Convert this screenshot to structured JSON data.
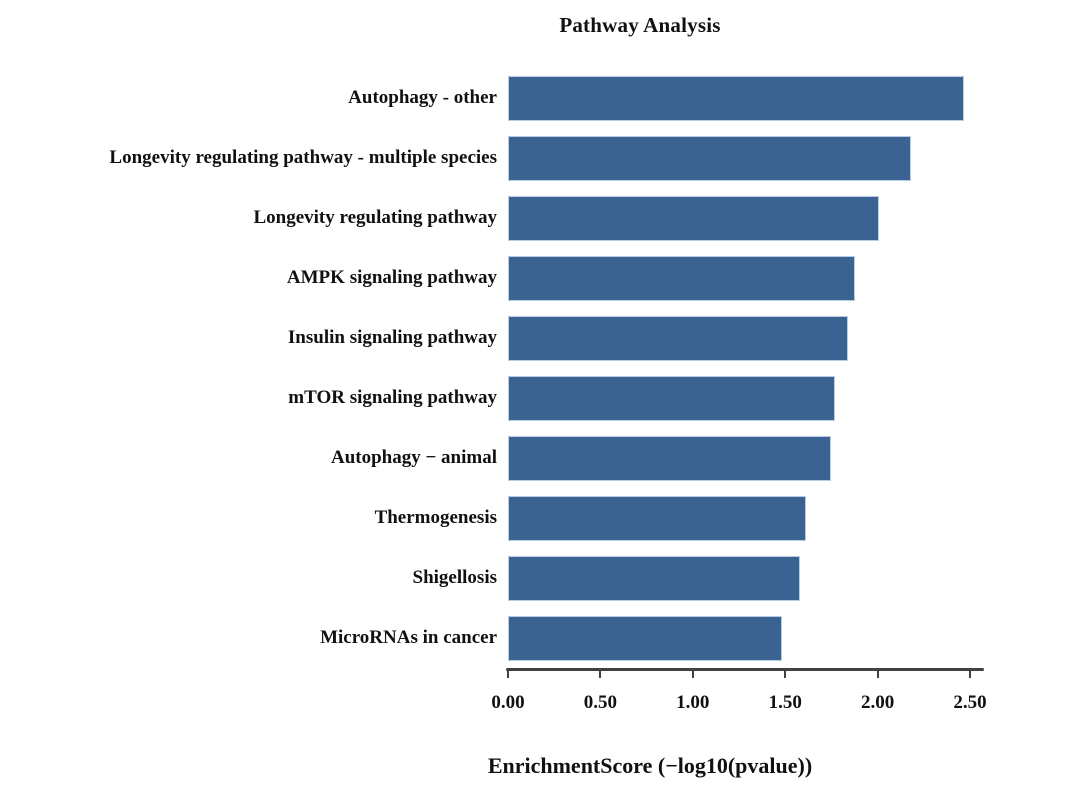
{
  "chart_data": {
    "type": "bar",
    "orientation": "horizontal",
    "title": "Pathway Analysis",
    "xlabel": "EnrichmentScore (−log10(pvalue))",
    "categories": [
      "Autophagy - other",
      "Longevity regulating pathway - multiple species",
      "Longevity regulating pathway",
      "AMPK signaling pathway",
      "Insulin signaling pathway",
      "mTOR signaling pathway",
      "Autophagy − animal",
      "Thermogenesis",
      "Shigellosis",
      "MicroRNAs in cancer"
    ],
    "values": [
      2.47,
      2.18,
      2.01,
      1.88,
      1.84,
      1.77,
      1.75,
      1.61,
      1.58,
      1.48
    ],
    "xlim": [
      0,
      2.5
    ],
    "xticks": [
      "0.00",
      "0.50",
      "1.00",
      "1.50",
      "2.00",
      "2.50"
    ],
    "grid": false,
    "legend": "none",
    "bar_color": "#3A6392",
    "axis_color": "#414141",
    "text_color": "#111111"
  }
}
